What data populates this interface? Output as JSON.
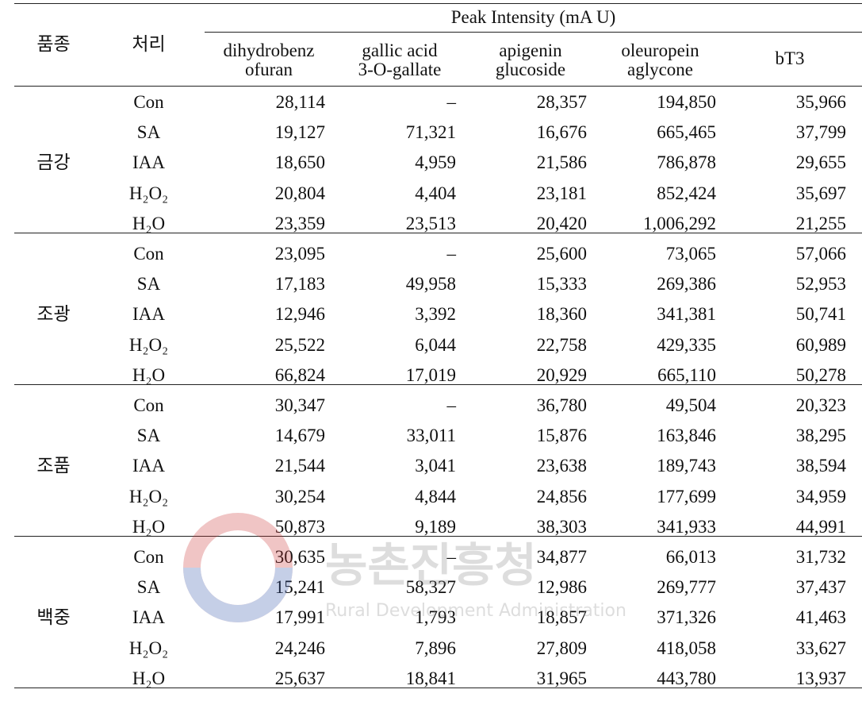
{
  "table": {
    "header": {
      "variety": "품종",
      "treatment": "처리",
      "group_title": "Peak Intensity (mA U)",
      "columns": [
        [
          "dihydrobenz",
          "ofuran"
        ],
        [
          "gallic acid",
          "3-O-gallate"
        ],
        [
          "apigenin",
          "glucoside"
        ],
        [
          "oleuropein",
          "aglycone"
        ],
        [
          "bT3"
        ]
      ]
    },
    "groups": [
      {
        "variety": "금강",
        "rows": [
          {
            "treatment": "Con",
            "values": [
              "28,114",
              "–",
              "28,357",
              "194,850",
              "35,966"
            ]
          },
          {
            "treatment": "SA",
            "values": [
              "19,127",
              "71,321",
              "16,676",
              "665,465",
              "37,799"
            ]
          },
          {
            "treatment": "IAA",
            "values": [
              "18,650",
              "4,959",
              "21,586",
              "786,878",
              "29,655"
            ]
          },
          {
            "treatment": "H₂O₂",
            "values": [
              "20,804",
              "4,404",
              "23,181",
              "852,424",
              "35,697"
            ]
          },
          {
            "treatment": "H₂O",
            "values": [
              "23,359",
              "23,513",
              "20,420",
              "1,006,292",
              "21,255"
            ]
          }
        ]
      },
      {
        "variety": "조광",
        "rows": [
          {
            "treatment": "Con",
            "values": [
              "23,095",
              "–",
              "25,600",
              "73,065",
              "57,066"
            ]
          },
          {
            "treatment": "SA",
            "values": [
              "17,183",
              "49,958",
              "15,333",
              "269,386",
              "52,953"
            ]
          },
          {
            "treatment": "IAA",
            "values": [
              "12,946",
              "3,392",
              "18,360",
              "341,381",
              "50,741"
            ]
          },
          {
            "treatment": "H₂O₂",
            "values": [
              "25,522",
              "6,044",
              "22,758",
              "429,335",
              "60,989"
            ]
          },
          {
            "treatment": "H₂O",
            "values": [
              "66,824",
              "17,019",
              "20,929",
              "665,110",
              "50,278"
            ]
          }
        ]
      },
      {
        "variety": "조품",
        "rows": [
          {
            "treatment": "Con",
            "values": [
              "30,347",
              "–",
              "36,780",
              "49,504",
              "20,323"
            ]
          },
          {
            "treatment": "SA",
            "values": [
              "14,679",
              "33,011",
              "15,876",
              "163,846",
              "38,295"
            ]
          },
          {
            "treatment": "IAA",
            "values": [
              "21,544",
              "3,041",
              "23,638",
              "189,743",
              "38,594"
            ]
          },
          {
            "treatment": "H₂O₂",
            "values": [
              "30,254",
              "4,844",
              "24,856",
              "177,699",
              "34,959"
            ]
          },
          {
            "treatment": "H₂O",
            "values": [
              "50,873",
              "9,189",
              "38,303",
              "341,933",
              "44,991"
            ]
          }
        ]
      },
      {
        "variety": "백중",
        "rows": [
          {
            "treatment": "Con",
            "values": [
              "30,635",
              "–",
              "34,877",
              "66,013",
              "31,732"
            ]
          },
          {
            "treatment": "SA",
            "values": [
              "15,241",
              "58,327",
              "12,986",
              "269,777",
              "37,437"
            ]
          },
          {
            "treatment": "IAA",
            "values": [
              "17,991",
              "1,793",
              "18,857",
              "371,326",
              "41,463"
            ]
          },
          {
            "treatment": "H₂O₂",
            "values": [
              "24,246",
              "7,896",
              "27,809",
              "418,058",
              "33,627"
            ]
          },
          {
            "treatment": "H₂O",
            "values": [
              "25,637",
              "18,841",
              "31,965",
              "443,780",
              "13,937"
            ]
          }
        ]
      }
    ]
  },
  "watermark": {
    "name": "농촌진흥청",
    "subtitle": "Rural Development Administration"
  }
}
